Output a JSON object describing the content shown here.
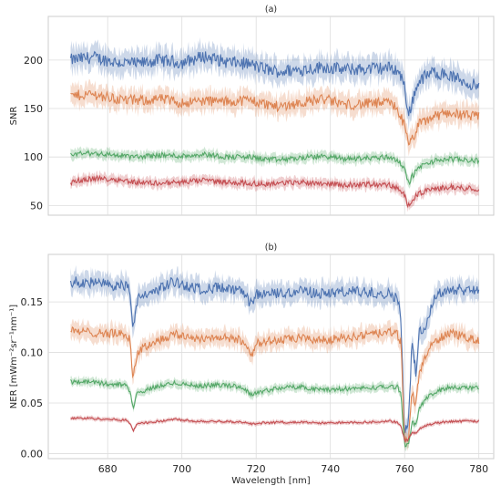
{
  "chart_data": [
    {
      "type": "line",
      "title": "(a)",
      "xlabel": "",
      "ylabel": "SNR",
      "xlim": [
        664,
        784
      ],
      "ylim": [
        40,
        245
      ],
      "xticks": [
        680,
        700,
        720,
        740,
        760,
        780
      ],
      "yticks": [
        50,
        100,
        150,
        200
      ],
      "ytick_labels": [
        "50",
        "100",
        "150",
        "200"
      ],
      "grid": true,
      "band": "shaded variability band around each line",
      "series": [
        {
          "color": "#4c72b0",
          "x": [
            670,
            676,
            682,
            688,
            694,
            700,
            706,
            712,
            718,
            722,
            726,
            732,
            738,
            744,
            750,
            756,
            758,
            760,
            761,
            762,
            764,
            768,
            772,
            776,
            780
          ],
          "y": [
            200,
            203,
            198,
            196,
            200,
            197,
            204,
            198,
            196,
            191,
            188,
            190,
            193,
            190,
            191,
            192,
            190,
            175,
            140,
            158,
            180,
            188,
            184,
            178,
            172
          ],
          "band": [
            12,
            12,
            12,
            12,
            12,
            12,
            12,
            12,
            12,
            12,
            12,
            12,
            12,
            12,
            12,
            12,
            12,
            12,
            12,
            12,
            12,
            12,
            12,
            12,
            12
          ]
        },
        {
          "color": "#dd8452",
          "x": [
            670,
            676,
            682,
            688,
            694,
            700,
            706,
            712,
            718,
            722,
            726,
            732,
            738,
            744,
            750,
            756,
            758,
            760,
            761,
            762,
            764,
            768,
            772,
            776,
            780
          ],
          "y": [
            163,
            165,
            160,
            158,
            160,
            156,
            158,
            157,
            159,
            155,
            152,
            156,
            160,
            154,
            155,
            156,
            150,
            132,
            112,
            118,
            134,
            142,
            146,
            143,
            141
          ],
          "band": [
            10,
            10,
            10,
            10,
            10,
            10,
            10,
            10,
            10,
            10,
            10,
            10,
            10,
            10,
            10,
            10,
            10,
            10,
            10,
            10,
            10,
            10,
            10,
            10,
            10
          ]
        },
        {
          "color": "#55a868",
          "x": [
            670,
            676,
            682,
            688,
            694,
            700,
            706,
            712,
            718,
            722,
            726,
            732,
            738,
            744,
            750,
            756,
            758,
            760,
            761,
            762,
            764,
            768,
            772,
            776,
            780
          ],
          "y": [
            103,
            104,
            102,
            100,
            102,
            101,
            103,
            100,
            100,
            98,
            97,
            99,
            101,
            98,
            99,
            100,
            97,
            88,
            72,
            80,
            90,
            96,
            98,
            97,
            96
          ],
          "band": [
            5,
            5,
            5,
            5,
            5,
            5,
            5,
            5,
            5,
            5,
            5,
            5,
            5,
            5,
            5,
            5,
            5,
            5,
            5,
            5,
            5,
            5,
            5,
            5,
            5
          ]
        },
        {
          "color": "#c44e52",
          "x": [
            670,
            676,
            682,
            688,
            694,
            700,
            706,
            712,
            718,
            722,
            726,
            732,
            738,
            744,
            750,
            756,
            758,
            760,
            761,
            762,
            764,
            768,
            772,
            776,
            780
          ],
          "y": [
            74,
            78,
            77,
            74,
            73,
            74,
            76,
            74,
            73,
            72,
            73,
            74,
            73,
            71,
            72,
            71,
            68,
            60,
            50,
            56,
            63,
            67,
            69,
            68,
            67
          ],
          "band": [
            5,
            5,
            5,
            5,
            5,
            5,
            5,
            5,
            5,
            5,
            5,
            5,
            5,
            5,
            5,
            5,
            5,
            5,
            5,
            5,
            5,
            5,
            5,
            5,
            5
          ]
        }
      ]
    },
    {
      "type": "line",
      "title": "(b)",
      "xlabel": "Wavelength [nm]",
      "ylabel": "NER [mWm⁻²sr⁻¹nm⁻¹]",
      "xlim": [
        664,
        784
      ],
      "ylim": [
        -0.005,
        0.197
      ],
      "xticks": [
        680,
        700,
        720,
        740,
        760,
        780
      ],
      "yticks": [
        0.0,
        0.05,
        0.1,
        0.15
      ],
      "ytick_labels": [
        "0.00",
        "0.05",
        "0.10",
        "0.15"
      ],
      "grid": true,
      "band": "shaded variability band around each line",
      "series": [
        {
          "color": "#4c72b0",
          "x": [
            670,
            675,
            680,
            685,
            686,
            686.8,
            688,
            692,
            698,
            704,
            710,
            716,
            719,
            720,
            726,
            732,
            738,
            744,
            750,
            756,
            758,
            759,
            760,
            761,
            762,
            763,
            764,
            766,
            768,
            772,
            776,
            780
          ],
          "y": [
            0.17,
            0.169,
            0.167,
            0.166,
            0.16,
            0.125,
            0.152,
            0.16,
            0.17,
            0.163,
            0.164,
            0.16,
            0.146,
            0.158,
            0.158,
            0.161,
            0.158,
            0.16,
            0.16,
            0.158,
            0.154,
            0.135,
            0.02,
            0.03,
            0.11,
            0.08,
            0.12,
            0.13,
            0.155,
            0.163,
            0.162,
            0.163
          ],
          "band": [
            0.01,
            0.01,
            0.01,
            0.01,
            0.01,
            0.01,
            0.01,
            0.01,
            0.01,
            0.01,
            0.01,
            0.01,
            0.01,
            0.01,
            0.01,
            0.01,
            0.01,
            0.01,
            0.01,
            0.01,
            0.01,
            0.01,
            0.01,
            0.01,
            0.01,
            0.01,
            0.01,
            0.01,
            0.01,
            0.01,
            0.01,
            0.01
          ]
        },
        {
          "color": "#dd8452",
          "x": [
            670,
            675,
            680,
            685,
            686,
            686.8,
            688,
            692,
            698,
            704,
            710,
            716,
            719,
            720,
            726,
            732,
            738,
            744,
            750,
            756,
            758,
            759,
            760,
            761,
            762,
            763,
            764,
            766,
            768,
            772,
            776,
            780
          ],
          "y": [
            0.121,
            0.12,
            0.119,
            0.118,
            0.112,
            0.075,
            0.1,
            0.11,
            0.118,
            0.114,
            0.115,
            0.112,
            0.098,
            0.11,
            0.112,
            0.114,
            0.112,
            0.115,
            0.117,
            0.12,
            0.118,
            0.11,
            0.01,
            0.015,
            0.06,
            0.05,
            0.08,
            0.1,
            0.11,
            0.12,
            0.115,
            0.113
          ],
          "band": [
            0.008,
            0.008,
            0.008,
            0.008,
            0.008,
            0.008,
            0.008,
            0.008,
            0.008,
            0.008,
            0.008,
            0.008,
            0.008,
            0.008,
            0.008,
            0.008,
            0.008,
            0.008,
            0.008,
            0.008,
            0.008,
            0.008,
            0.008,
            0.008,
            0.008,
            0.008,
            0.008,
            0.008,
            0.008,
            0.008,
            0.008,
            0.008
          ]
        },
        {
          "color": "#55a868",
          "x": [
            670,
            675,
            680,
            685,
            686,
            686.8,
            688,
            692,
            698,
            704,
            710,
            716,
            719,
            720,
            726,
            732,
            738,
            744,
            750,
            756,
            758,
            759,
            760,
            761,
            762,
            763,
            764,
            766,
            768,
            772,
            776,
            780
          ],
          "y": [
            0.071,
            0.071,
            0.069,
            0.068,
            0.062,
            0.045,
            0.06,
            0.065,
            0.07,
            0.067,
            0.068,
            0.066,
            0.058,
            0.06,
            0.065,
            0.066,
            0.063,
            0.064,
            0.065,
            0.066,
            0.066,
            0.06,
            0.008,
            0.01,
            0.03,
            0.03,
            0.045,
            0.055,
            0.06,
            0.066,
            0.065,
            0.065
          ],
          "band": [
            0.004,
            0.004,
            0.004,
            0.004,
            0.004,
            0.004,
            0.004,
            0.004,
            0.004,
            0.004,
            0.004,
            0.004,
            0.004,
            0.004,
            0.004,
            0.004,
            0.004,
            0.004,
            0.004,
            0.004,
            0.004,
            0.004,
            0.004,
            0.004,
            0.004,
            0.004,
            0.004,
            0.004,
            0.004,
            0.004,
            0.004,
            0.004
          ]
        },
        {
          "color": "#c44e52",
          "x": [
            670,
            675,
            680,
            685,
            686,
            686.8,
            688,
            692,
            698,
            704,
            710,
            716,
            719,
            720,
            726,
            732,
            738,
            744,
            750,
            756,
            758,
            759,
            760,
            761,
            762,
            763,
            764,
            766,
            768,
            772,
            776,
            780
          ],
          "y": [
            0.035,
            0.035,
            0.034,
            0.033,
            0.03,
            0.022,
            0.03,
            0.031,
            0.034,
            0.032,
            0.032,
            0.031,
            0.029,
            0.03,
            0.031,
            0.031,
            0.03,
            0.031,
            0.031,
            0.032,
            0.031,
            0.028,
            0.012,
            0.014,
            0.02,
            0.02,
            0.025,
            0.028,
            0.03,
            0.032,
            0.032,
            0.032
          ],
          "band": [
            0.002,
            0.002,
            0.002,
            0.002,
            0.002,
            0.002,
            0.002,
            0.002,
            0.002,
            0.002,
            0.002,
            0.002,
            0.002,
            0.002,
            0.002,
            0.002,
            0.002,
            0.002,
            0.002,
            0.002,
            0.002,
            0.002,
            0.002,
            0.002,
            0.002,
            0.002,
            0.002,
            0.002,
            0.002,
            0.002,
            0.002,
            0.002
          ]
        }
      ]
    }
  ]
}
